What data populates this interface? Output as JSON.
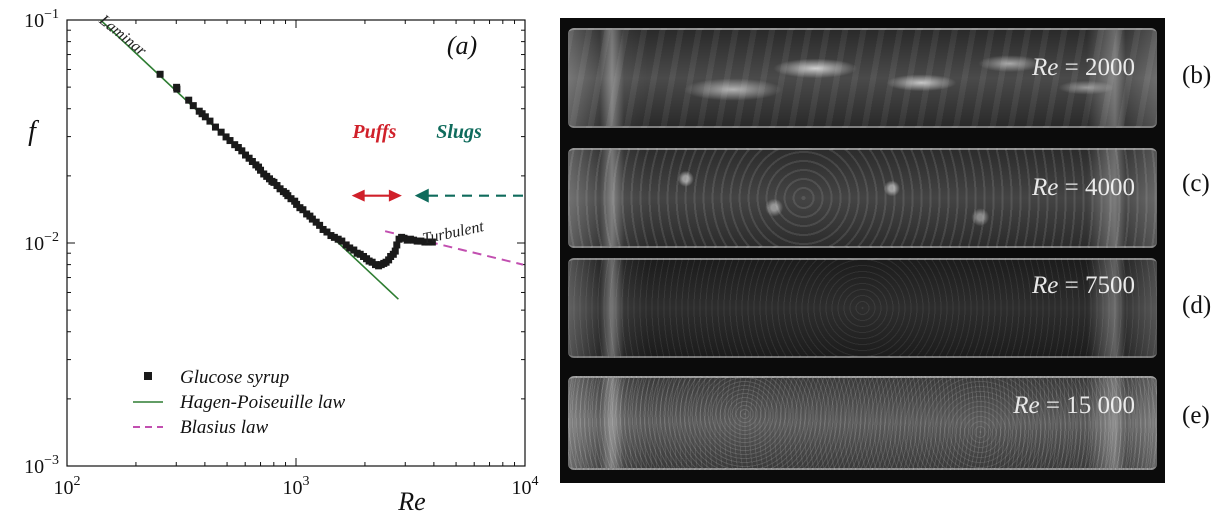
{
  "chart_data": {
    "type": "scatter",
    "xscale": "log",
    "yscale": "log",
    "xlim": [
      100,
      10000
    ],
    "ylim": [
      0.001,
      0.1
    ],
    "xlabel": "Re",
    "ylabel": "f",
    "x_ticks": [
      {
        "base": "10",
        "exp": "2",
        "value": 100
      },
      {
        "base": "10",
        "exp": "3",
        "value": 1000
      },
      {
        "base": "10",
        "exp": "4",
        "value": 10000
      }
    ],
    "y_ticks": [
      {
        "base": "10",
        "exp": "−3",
        "value": 0.001
      },
      {
        "base": "10",
        "exp": "−2",
        "value": 0.01
      },
      {
        "base": "10",
        "exp": "−1",
        "value": 0.1
      }
    ],
    "panel_label": "(a)",
    "legend_position": "bottom-left",
    "series": [
      {
        "name": "Glucose syrup",
        "kind": "markers",
        "color": "#1a1a1a",
        "points": [
          [
            255,
            0.0571
          ],
          [
            301,
            0.0499
          ],
          [
            302,
            0.049
          ],
          [
            340,
            0.0437
          ],
          [
            356,
            0.0413
          ],
          [
            378,
            0.039
          ],
          [
            389,
            0.038
          ],
          [
            402,
            0.0368
          ],
          [
            421,
            0.0352
          ],
          [
            445,
            0.0331
          ],
          [
            471,
            0.0314
          ],
          [
            495,
            0.0299
          ],
          [
            515,
            0.0288
          ],
          [
            540,
            0.0276
          ],
          [
            560,
            0.0268
          ],
          [
            580,
            0.0259
          ],
          [
            602,
            0.0248
          ],
          [
            624,
            0.024
          ],
          [
            645,
            0.0232
          ],
          [
            668,
            0.0224
          ],
          [
            686,
            0.0219
          ],
          [
            700,
            0.0212
          ],
          [
            723,
            0.0204
          ],
          [
            745,
            0.0199
          ],
          [
            766,
            0.0194
          ],
          [
            785,
            0.0189
          ],
          [
            801,
            0.0187
          ],
          [
            826,
            0.0181
          ],
          [
            852,
            0.0175
          ],
          [
            881,
            0.017
          ],
          [
            905,
            0.0167
          ],
          [
            921,
            0.0163
          ],
          [
            951,
            0.0158
          ],
          [
            987,
            0.0154
          ],
          [
            1006,
            0.0149
          ],
          [
            1040,
            0.0144
          ],
          [
            1072,
            0.0141
          ],
          [
            1113,
            0.0135
          ],
          [
            1150,
            0.0132
          ],
          [
            1179,
            0.0128
          ],
          [
            1225,
            0.0124
          ],
          [
            1268,
            0.012
          ],
          [
            1313,
            0.0115
          ],
          [
            1365,
            0.0112
          ],
          [
            1421,
            0.0108
          ],
          [
            1471,
            0.0106
          ],
          [
            1528,
            0.0104
          ],
          [
            1585,
            0.0102
          ],
          [
            1656,
            0.0098
          ],
          [
            1716,
            0.0095
          ],
          [
            1788,
            0.0093
          ],
          [
            1850,
            0.009
          ],
          [
            1907,
            0.0089
          ],
          [
            1972,
            0.0087
          ],
          [
            2033,
            0.0085
          ],
          [
            2086,
            0.0083
          ],
          [
            2150,
            0.0082
          ],
          [
            2224,
            0.008
          ],
          [
            2294,
            0.0079
          ],
          [
            2356,
            0.008
          ],
          [
            2417,
            0.0081
          ],
          [
            2474,
            0.0082
          ],
          [
            2538,
            0.0084
          ],
          [
            2590,
            0.0087
          ],
          [
            2660,
            0.0089
          ],
          [
            2713,
            0.0092
          ],
          [
            2755,
            0.0098
          ],
          [
            2819,
            0.0104
          ],
          [
            2891,
            0.0106
          ],
          [
            2962,
            0.0105
          ],
          [
            3058,
            0.0103
          ],
          [
            3160,
            0.0104
          ],
          [
            3262,
            0.0103
          ],
          [
            3382,
            0.0102
          ],
          [
            3512,
            0.0102
          ],
          [
            3655,
            0.0101
          ],
          [
            3788,
            0.0101
          ],
          [
            3940,
            0.0101
          ]
        ]
      },
      {
        "name": "Hagen-Poiseuille law",
        "kind": "line",
        "color": "#2e7d32",
        "x": [
          140,
          2800
        ],
        "y": [
          0.1,
          0.0056
        ]
      },
      {
        "name": "Blasius law",
        "kind": "dashed-line",
        "color": "#c24fb0",
        "x": [
          2450,
          9800
        ],
        "y": [
          0.0113,
          0.008
        ]
      }
    ],
    "annotations": [
      {
        "text": "Laminar",
        "x": 170,
        "y": 0.082,
        "color": "#222222"
      },
      {
        "text": "Turbulent",
        "x": 4900,
        "y": 0.0106,
        "color": "#222222"
      },
      {
        "text": "Puffs",
        "x": 2200,
        "y": 0.0295,
        "color": "#d0202a"
      },
      {
        "text": "Slugs",
        "x": 5150,
        "y": 0.0295,
        "color": "#0f6b5c"
      }
    ],
    "arrows": [
      {
        "name": "puffs-arrow",
        "kind": "double",
        "color": "#d0202a",
        "x": [
          1750,
          2900
        ],
        "y": 0.0163
      },
      {
        "name": "slugs-arrow",
        "kind": "dashed-left",
        "color": "#0f6b5c",
        "x": [
          9900,
          3300
        ],
        "y": 0.0163
      }
    ]
  },
  "legend": [
    {
      "label": "Glucose syrup",
      "symbol": "square",
      "color": "#1a1a1a"
    },
    {
      "label": "Hagen-Poiseuille law",
      "symbol": "line",
      "color": "#2e7d32"
    },
    {
      "label": "Blasius law",
      "symbol": "dashed",
      "color": "#c24fb0"
    }
  ],
  "photos": [
    {
      "panel": "(b)",
      "re_prefix": "Re",
      "re_value": "= 2000"
    },
    {
      "panel": "(c)",
      "re_prefix": "Re",
      "re_value": "= 4000"
    },
    {
      "panel": "(d)",
      "re_prefix": "Re",
      "re_value": "= 7500"
    },
    {
      "panel": "(e)",
      "re_prefix": "Re",
      "re_value": "= 15 000"
    }
  ]
}
